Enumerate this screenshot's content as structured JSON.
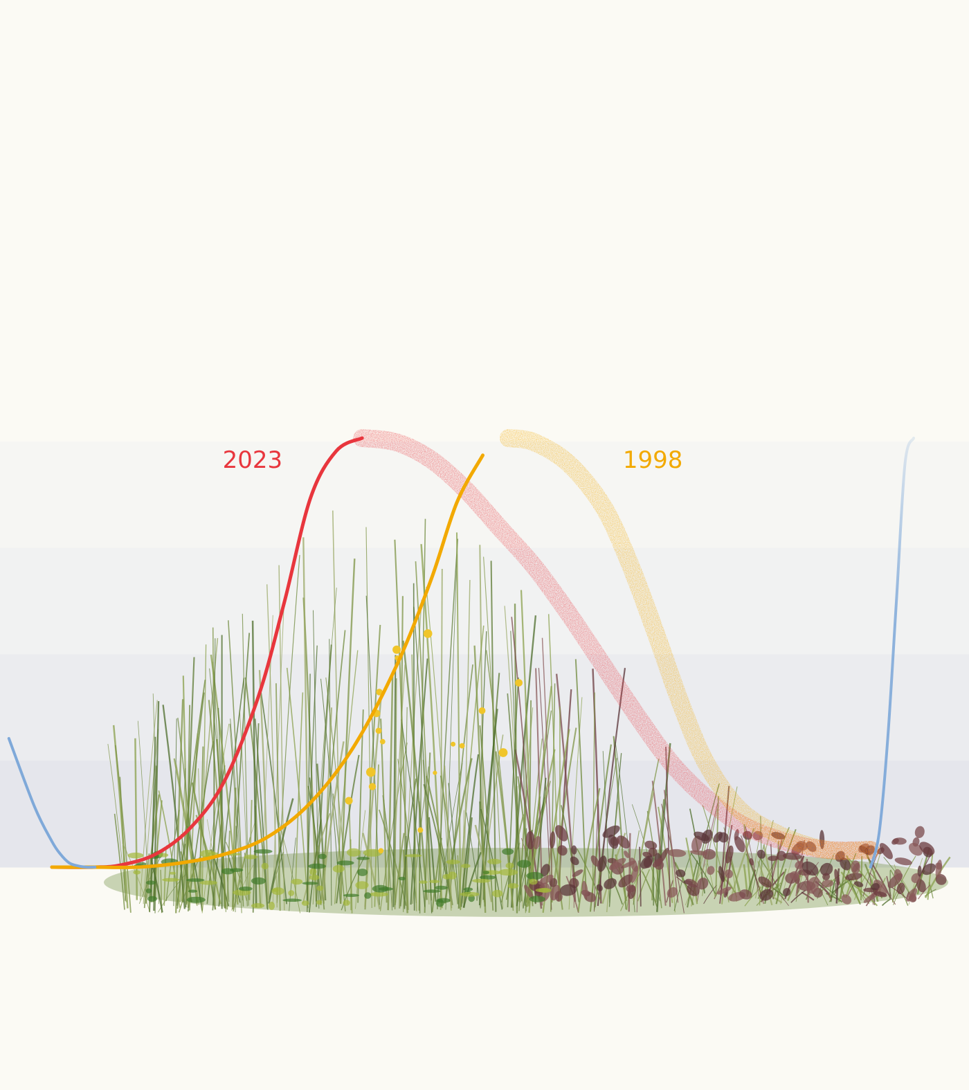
{
  "chart_data": {
    "type": "line",
    "title": "",
    "xlabel": "",
    "ylabel": "",
    "xlim": [
      0,
      100
    ],
    "ylim": [
      0,
      100
    ],
    "bands": 4,
    "grid": false,
    "legend": "inline labels",
    "series": [
      {
        "name": "2023",
        "color": "#e8363d",
        "label": "2023",
        "solid_until_x": 36,
        "x": [
          0,
          5,
          8,
          12,
          16,
          20,
          24,
          27,
          30,
          33,
          36,
          40,
          44,
          48,
          52,
          56,
          60,
          64,
          68,
          72,
          76,
          80,
          85,
          90,
          95
        ],
        "y": [
          0,
          0,
          0.5,
          3,
          9,
          20,
          40,
          62,
          86,
          97,
          100,
          99,
          95,
          88,
          79,
          70,
          59,
          47,
          35,
          24,
          16,
          10,
          6,
          4,
          4
        ]
      },
      {
        "name": "1998",
        "color": "#f2a900",
        "label": "1998",
        "solid_until_x": 52,
        "x": [
          0,
          5,
          10,
          15,
          20,
          25,
          30,
          35,
          40,
          44,
          47,
          50,
          53,
          56,
          60,
          64,
          67,
          70,
          73,
          76,
          80,
          85,
          90,
          95
        ],
        "y": [
          0,
          0,
          0,
          1,
          3,
          7,
          15,
          28,
          47,
          67,
          85,
          96,
          100,
          99,
          94,
          84,
          71,
          55,
          38,
          24,
          13,
          7,
          4,
          4
        ]
      },
      {
        "name": "",
        "color": "#7fa9d9",
        "x": [
          -5,
          -2,
          0,
          1,
          2,
          3,
          4,
          5,
          95,
          96,
          97,
          98,
          99,
          100
        ],
        "y": [
          30,
          14,
          6,
          3,
          1,
          0.3,
          0,
          0,
          0,
          8,
          30,
          62,
          94,
          100
        ]
      }
    ]
  }
}
